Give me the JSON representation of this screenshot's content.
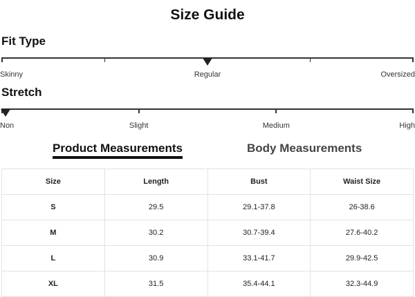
{
  "title": "Size Guide",
  "fit_type": {
    "label": "Fit Type",
    "options": [
      "Skinny",
      "Regular",
      "Oversized"
    ],
    "selected": "Regular",
    "marker_position": 0.5
  },
  "stretch": {
    "label": "Stretch",
    "options": [
      "Non",
      "Slight",
      "Medium",
      "High"
    ],
    "selected": "Non",
    "marker_position": 0
  },
  "tabs": [
    {
      "label": "Product Measurements",
      "active": true
    },
    {
      "label": "Body Measurements",
      "active": false
    }
  ],
  "table": {
    "headers": [
      "Size",
      "Length",
      "Bust",
      "Waist Size"
    ],
    "rows": [
      [
        "S",
        "29.5",
        "29.1-37.8",
        "26-38.6"
      ],
      [
        "M",
        "30.2",
        "30.7-39.4",
        "27.6-40.2"
      ],
      [
        "L",
        "30.9",
        "33.1-41.7",
        "29.9-42.5"
      ],
      [
        "XL",
        "31.5",
        "35.4-44.1",
        "32.3-44.9"
      ]
    ]
  }
}
